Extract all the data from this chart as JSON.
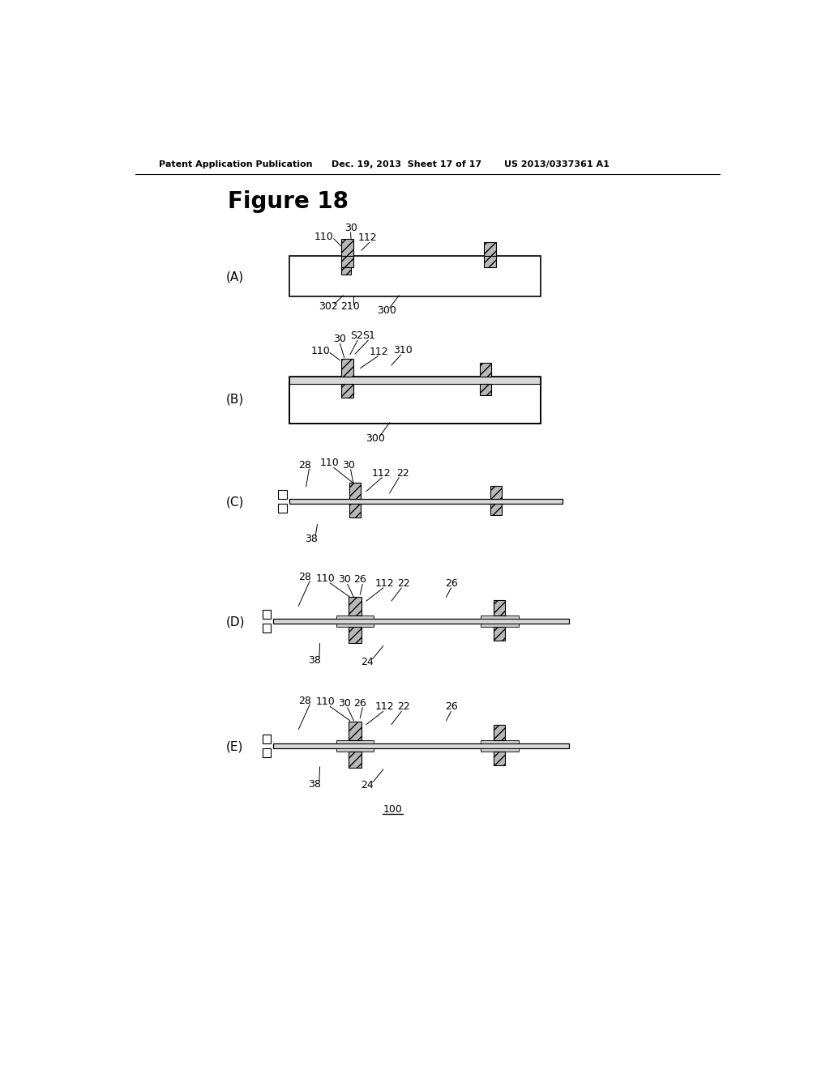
{
  "title": "Figure 18",
  "header_left": "Patent Application Publication",
  "header_mid": "Dec. 19, 2013  Sheet 17 of 17",
  "header_right": "US 2013/0337361 A1",
  "bg_color": "#ffffff",
  "gray_hatch": "#b8b8b8",
  "gray_plate": "#d8d8d8",
  "gray_strip": "#c8c8c8"
}
